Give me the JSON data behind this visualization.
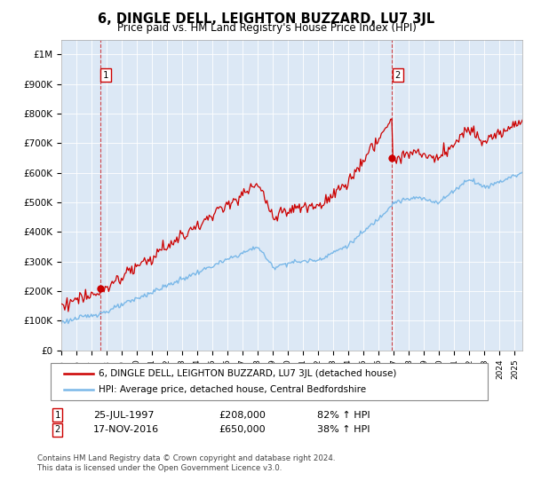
{
  "title": "6, DINGLE DELL, LEIGHTON BUZZARD, LU7 3JL",
  "subtitle": "Price paid vs. HM Land Registry's House Price Index (HPI)",
  "sale1_date_num": 1997.56,
  "sale1_price": 208000,
  "sale1_label": "1",
  "sale1_annotation": "25-JUL-1997",
  "sale1_pct": "82% ↑ HPI",
  "sale2_date_num": 2016.88,
  "sale2_price": 650000,
  "sale2_label": "2",
  "sale2_annotation": "17-NOV-2016",
  "sale2_pct": "38% ↑ HPI",
  "hpi_color": "#7ab8e8",
  "price_color": "#cc0000",
  "marker_color": "#cc0000",
  "dashed_color": "#cc0000",
  "box_color": "#cc0000",
  "plot_bg": "#dce8f5",
  "legend_label_price": "6, DINGLE DELL, LEIGHTON BUZZARD, LU7 3JL (detached house)",
  "legend_label_hpi": "HPI: Average price, detached house, Central Bedfordshire",
  "footer": "Contains HM Land Registry data © Crown copyright and database right 2024.\nThis data is licensed under the Open Government Licence v3.0.",
  "xmin": 1995,
  "xmax": 2025.5,
  "ymin": 0,
  "ymax": 1050000
}
